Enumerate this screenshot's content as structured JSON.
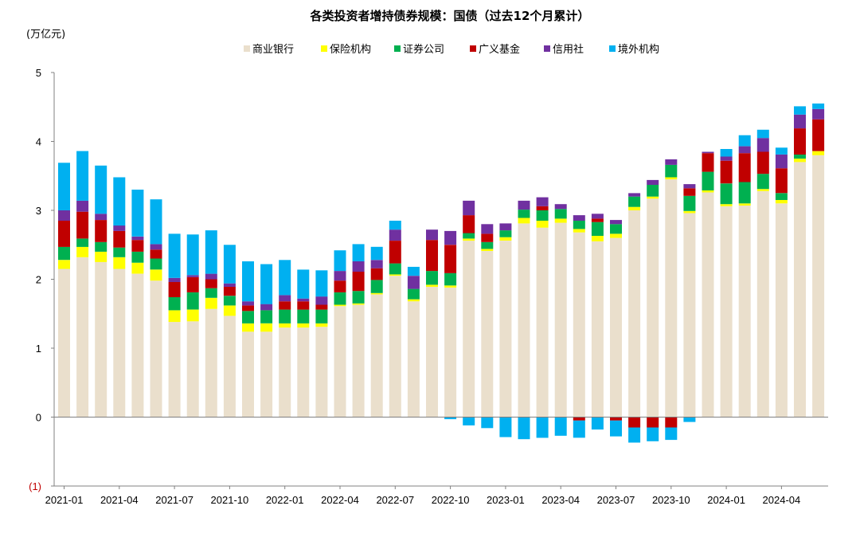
{
  "chart_data": {
    "type": "bar",
    "stacked": true,
    "title": "各类投资者增持债券规模：国债（过去12个月累计）",
    "unit": "(万亿元)",
    "ylim": [
      -1,
      5
    ],
    "yticks": [
      {
        "value": 5,
        "label": "5"
      },
      {
        "value": 4,
        "label": "4"
      },
      {
        "value": 3,
        "label": "3"
      },
      {
        "value": 2,
        "label": "2"
      },
      {
        "value": 1,
        "label": "1"
      },
      {
        "value": 0,
        "label": "0"
      },
      {
        "value": -1,
        "label": "(1)"
      }
    ],
    "categories": [
      "2021-01",
      "2021-02",
      "2021-03",
      "2021-04",
      "2021-05",
      "2021-06",
      "2021-07",
      "2021-08",
      "2021-09",
      "2021-10",
      "2021-11",
      "2021-12",
      "2022-01",
      "2022-02",
      "2022-03",
      "2022-04",
      "2022-05",
      "2022-06",
      "2022-07",
      "2022-08",
      "2022-09",
      "2022-10",
      "2022-11",
      "2022-12",
      "2023-01",
      "2023-02",
      "2023-03",
      "2023-04",
      "2023-05",
      "2023-06",
      "2023-07",
      "2023-08",
      "2023-09",
      "2023-10",
      "2023-11",
      "2023-12",
      "2024-01",
      "2024-02",
      "2024-03",
      "2024-04",
      "2024-05",
      "2024-06"
    ],
    "xtick_labels": [
      "2021-01",
      "2021-04",
      "2021-07",
      "2021-10",
      "2022-01",
      "2022-04",
      "2022-07",
      "2022-10",
      "2023-01",
      "2023-04",
      "2023-07",
      "2023-10",
      "2024-01",
      "2024-04"
    ],
    "legend_position": "top-center",
    "series": [
      {
        "name": "商业银行",
        "color": "#eadfcc",
        "values": [
          2.15,
          2.32,
          2.25,
          2.15,
          2.08,
          1.98,
          1.38,
          1.39,
          1.57,
          1.47,
          1.24,
          1.24,
          1.3,
          1.3,
          1.31,
          1.61,
          1.63,
          1.78,
          2.05,
          1.68,
          1.89,
          1.88,
          2.56,
          2.41,
          2.56,
          2.81,
          2.75,
          2.82,
          2.68,
          2.55,
          2.6,
          3.0,
          3.17,
          3.45,
          2.96,
          3.26,
          3.06,
          3.07,
          3.28,
          3.1,
          3.7,
          3.8
        ]
      },
      {
        "name": "保险机构",
        "color": "#ffff00",
        "values": [
          0.13,
          0.15,
          0.15,
          0.17,
          0.16,
          0.16,
          0.17,
          0.17,
          0.16,
          0.15,
          0.12,
          0.12,
          0.06,
          0.06,
          0.05,
          0.02,
          0.02,
          0.02,
          0.02,
          0.03,
          0.03,
          0.03,
          0.03,
          0.03,
          0.05,
          0.08,
          0.1,
          0.06,
          0.05,
          0.08,
          0.06,
          0.05,
          0.03,
          0.03,
          0.03,
          0.03,
          0.03,
          0.03,
          0.03,
          0.05,
          0.05,
          0.06
        ]
      },
      {
        "name": "证券公司",
        "color": "#00b050",
        "values": [
          0.19,
          0.12,
          0.14,
          0.14,
          0.16,
          0.16,
          0.19,
          0.25,
          0.14,
          0.14,
          0.18,
          0.19,
          0.2,
          0.2,
          0.2,
          0.18,
          0.18,
          0.19,
          0.16,
          0.15,
          0.2,
          0.18,
          0.08,
          0.1,
          0.1,
          0.12,
          0.15,
          0.14,
          0.12,
          0.2,
          0.14,
          0.15,
          0.17,
          0.18,
          0.22,
          0.27,
          0.3,
          0.31,
          0.22,
          0.1,
          0.06,
          0.0
        ]
      },
      {
        "name": "广义基金",
        "color": "#c00000",
        "values": [
          0.38,
          0.39,
          0.32,
          0.24,
          0.17,
          0.13,
          0.22,
          0.22,
          0.13,
          0.13,
          0.08,
          0.0,
          0.12,
          0.12,
          0.07,
          0.17,
          0.28,
          0.17,
          0.33,
          0.0,
          0.45,
          0.41,
          0.26,
          0.12,
          0.0,
          0.0,
          0.06,
          0.0,
          -0.05,
          0.05,
          -0.05,
          -0.15,
          -0.15,
          -0.15,
          0.11,
          0.27,
          0.33,
          0.42,
          0.32,
          0.36,
          0.38,
          0.46
        ]
      },
      {
        "name": "信用社",
        "color": "#7030a0",
        "values": [
          0.15,
          0.16,
          0.09,
          0.08,
          0.05,
          0.08,
          0.06,
          0.03,
          0.08,
          0.05,
          0.06,
          0.09,
          0.09,
          0.04,
          0.12,
          0.14,
          0.15,
          0.12,
          0.16,
          0.19,
          0.15,
          0.2,
          0.21,
          0.14,
          0.1,
          0.13,
          0.13,
          0.07,
          0.08,
          0.07,
          0.06,
          0.05,
          0.07,
          0.08,
          0.06,
          0.02,
          0.06,
          0.1,
          0.2,
          0.2,
          0.2,
          0.15
        ]
      },
      {
        "name": "境外机构",
        "color": "#00b0f0",
        "values": [
          0.69,
          0.72,
          0.7,
          0.7,
          0.68,
          0.65,
          0.64,
          0.59,
          0.63,
          0.56,
          0.58,
          0.58,
          0.51,
          0.42,
          0.38,
          0.3,
          0.25,
          0.19,
          0.13,
          0.13,
          0.0,
          -0.03,
          -0.12,
          -0.16,
          -0.29,
          -0.32,
          -0.3,
          -0.27,
          -0.25,
          -0.18,
          -0.23,
          -0.22,
          -0.2,
          -0.18,
          -0.07,
          0.0,
          0.11,
          0.16,
          0.12,
          0.1,
          0.12,
          0.08
        ]
      }
    ]
  }
}
